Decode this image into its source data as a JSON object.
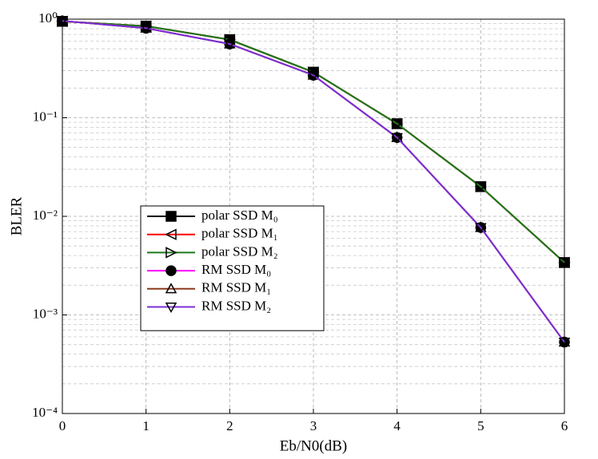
{
  "chart_data": {
    "type": "line",
    "x_label": "Eb/N0(dB)",
    "y_label": "BLER",
    "log_y": true,
    "grid": true,
    "x": [
      0,
      1,
      2,
      3,
      4,
      5,
      6
    ],
    "xlim": [
      0,
      6
    ],
    "xticks": [
      0,
      1,
      2,
      3,
      4,
      5,
      6
    ],
    "ylim": [
      0.0001,
      1
    ],
    "yticks": [
      {
        "value": 0.0001,
        "label": "10⁻⁴"
      },
      {
        "value": 0.001,
        "label": "10⁻³"
      },
      {
        "value": 0.01,
        "label": "10⁻²"
      },
      {
        "value": 0.1,
        "label": "10⁻¹"
      },
      {
        "value": 1,
        "label": "10⁰"
      }
    ],
    "legend_position": "center-left",
    "series": [
      {
        "name": "polar SSD M₀",
        "color": "#000000",
        "marker": "square",
        "values": [
          0.95,
          0.85,
          0.62,
          0.29,
          0.087,
          0.02,
          0.0034
        ]
      },
      {
        "name": "polar SSD M₁",
        "color": "#ff0000",
        "marker": "triangle-left",
        "values": [
          0.95,
          0.85,
          0.62,
          0.29,
          0.087,
          0.02,
          0.0034
        ]
      },
      {
        "name": "polar SSD M₂",
        "color": "#1a7a1a",
        "marker": "triangle-right",
        "values": [
          0.95,
          0.85,
          0.62,
          0.29,
          0.087,
          0.02,
          0.0034
        ]
      },
      {
        "name": "RM SSD M₀",
        "color": "#ff00ff",
        "marker": "circle",
        "values": [
          0.96,
          0.81,
          0.56,
          0.27,
          0.063,
          0.0077,
          0.00053
        ]
      },
      {
        "name": "RM SSD M₁",
        "color": "#8b3a1a",
        "marker": "triangle-up",
        "values": [
          0.96,
          0.81,
          0.56,
          0.27,
          0.063,
          0.0077,
          0.00053
        ]
      },
      {
        "name": "RM SSD M₂",
        "color": "#7b2fd6",
        "marker": "triangle-down",
        "values": [
          0.96,
          0.81,
          0.56,
          0.27,
          0.063,
          0.0077,
          0.00053
        ]
      }
    ]
  }
}
